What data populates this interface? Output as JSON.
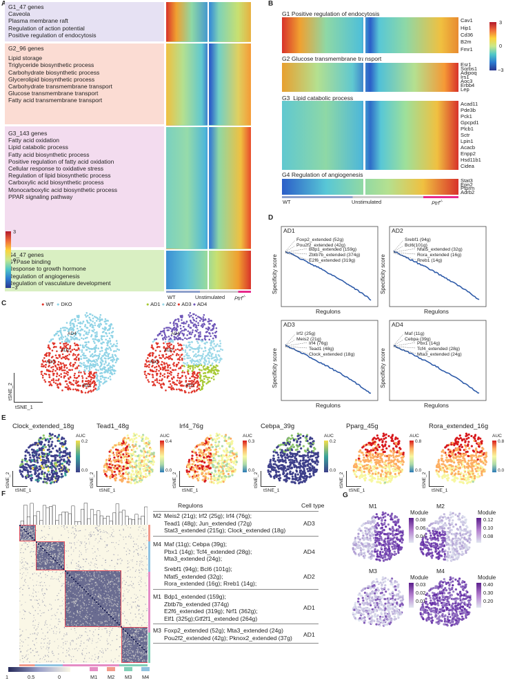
{
  "panels": {
    "a": "A",
    "b": "B",
    "c": "C",
    "d": "D",
    "e": "E",
    "f": "F",
    "g": "G"
  },
  "panelA": {
    "groups": [
      {
        "title": "G1_47 genes",
        "terms": [
          "Caveola",
          "Plasma membrane raft",
          "Regulation of action potential",
          "Positive regulation of endocytosis"
        ],
        "color": "#e6e1f3"
      },
      {
        "title": "G2_96 genes",
        "terms": [
          "Lipid storage",
          "Triglyceride biosynthetic process",
          "Carbohydrate biosynthetic process",
          "Glycerolipid biosynthetic process",
          "Carbohydrate transmembrane transport",
          "Glucose transmembrane transport",
          "Fatty acid transmembrane transport"
        ],
        "color": "#fbdcd3"
      },
      {
        "title": "G3_143 genes",
        "terms": [
          "Fatty acid oxidation",
          "Lipid catabolic process",
          "Fatty acid biosynthetic process",
          "Positive regulation of fatty acid oxidation",
          "Cellular response to oxidative stress",
          "Regulation of lipid biosynthetic process",
          "Carboxylic acid biosynthetic process",
          "Monocarboxylic acid biosynthetic process",
          "PPAR signaling pathway"
        ],
        "color": "#f3dcef"
      },
      {
        "title": "G4_47 genes",
        "terms": [
          "GTPase binding",
          "Response to growth hormone",
          "Regulation of angiogenesis",
          "Regulation of vasculature development"
        ],
        "color": "#d9efc2"
      }
    ],
    "scale": {
      "max": "3",
      "mid": "0",
      "min": "−3"
    },
    "xlabels": {
      "wt": "WT",
      "unstim": "Unstimulated",
      "ptrf": "Ptrf",
      "ptrf_sup": "-/-"
    }
  },
  "panelB": {
    "groups": [
      {
        "title": "G1  Positive regulation of endocytosis",
        "genes": [
          "Cav1",
          "Hip1",
          "Cd36",
          "B2m",
          "Fmr1"
        ]
      },
      {
        "title": "G2  Glucose transmembrane transport",
        "genes": [
          "Esr1",
          "Sorbs1",
          "Adipoq",
          "Irs1",
          "Aoc3",
          "Erbb4",
          "Lep"
        ]
      },
      {
        "title": "G3_Lipid catabolic process",
        "genes": [
          "Acad11",
          "Pde3b",
          "Pck1",
          "Gpcpd1",
          "Plcb1",
          "Sctr",
          "Lpin1",
          "Acacb",
          "Enpp2",
          "Hsd11b1",
          "Cidea"
        ]
      },
      {
        "title": "G4  Regulation of angiogenesis",
        "genes": [
          "Stat3",
          "Epn2",
          "Ptprm",
          "Adrb2"
        ]
      }
    ],
    "scale": {
      "max": "3",
      "mid": "0",
      "min": "−3"
    },
    "xlabels": {
      "wt": "WT",
      "unstim": "Unstimulated",
      "ptrf": "Ptrf",
      "ptrf_sup": "-/-"
    }
  },
  "panelC": {
    "legend1": [
      "WT",
      "DKO"
    ],
    "legend1_colors": [
      "#e0352a",
      "#8fd3e6"
    ],
    "legend2": [
      "AD1",
      "AD2",
      "AD3",
      "AD4"
    ],
    "legend2_colors": [
      "#a7c934",
      "#9bd8e8",
      "#e0352a",
      "#6f57b8"
    ],
    "cluster_labels": [
      "AD4",
      "AD2",
      "AD3",
      "AD1"
    ],
    "xlab": "tSNE_1",
    "ylab": "tSNE_2"
  },
  "panelD": {
    "ylab": "Specificity score",
    "xlab": "Regulons",
    "plots": [
      {
        "title": "AD1",
        "labels": [
          "Foxp2_extended (52g)",
          "Pou2f2_extended (42g)",
          "Bdp1_extended (159g)",
          "Zbtb7b_extended (374g)",
          "E2f6_extended (319g)"
        ]
      },
      {
        "title": "AD2",
        "labels": [
          "Srebf1 (94g)",
          "Bcl6(101g)",
          "Nfat5_extended (32g)",
          "Rora_extended (16g)",
          "Rreb1 (14g)"
        ]
      },
      {
        "title": "AD3",
        "labels": [
          "Irf2 (25g)",
          "Meis2 (21g)",
          "Irf4 (76g)",
          "Tead1 (48g)",
          "Clock_extended (18g)"
        ]
      },
      {
        "title": "AD4",
        "labels": [
          "Maf (11g)",
          "Cebpa (39g)",
          "Pbx1 (14g)",
          "Tcf4_extended (28g)",
          "Mta3_extended (24g)"
        ]
      }
    ]
  },
  "panelE": {
    "xlab": "tSNE_1",
    "ylab": "tSNE_2",
    "auc": "AUC",
    "plots": [
      {
        "title": "Clock_extended_18g",
        "max": "0.2",
        "min": "0.0"
      },
      {
        "title": "Tead1_48g",
        "max": "0.4",
        "min": "0.0"
      },
      {
        "title": "Irf4_76g",
        "max": "0.3",
        "min": "0.0"
      },
      {
        "title": "Cebpa_39g",
        "max": "0.2",
        "min": "0.0"
      },
      {
        "title": "Pparg_45g",
        "max": "0.8",
        "min": "0.0"
      },
      {
        "title": "Rora_extended_16g",
        "max": "0.8",
        "min": "0.0"
      }
    ]
  },
  "panelF": {
    "col_regulons": "Regulons",
    "col_celltype": "Cell type",
    "rows": [
      {
        "module": "M2",
        "text": [
          "Meis2 (21g); Irf2 (25g); Irf4 (76g);",
          "Tead1 (48g); Jun_extended (72g)",
          "Stat3_extended (215g); Clock_extended (18g)"
        ],
        "cell": "AD3"
      },
      {
        "module": "M4",
        "text": [
          "Maf (11g); Cebpa (39g);",
          "Pbx1 (14g); Tcf4_extended (28g);",
          "Mta3_extended (24g);"
        ],
        "cell": "AD4"
      },
      {
        "module": "",
        "text": [
          "Srebf1 (94g); Bcl6 (101g);",
          "Nfat5_extended (32g);",
          "Rora_extended (16g); Rreb1 (14g);"
        ],
        "cell": "AD2"
      },
      {
        "module": "M1",
        "text": [
          "Bdp1_extended (159g);",
          "Zbtb7b_extended (374g)",
          "E2f6_extended (319g); Nrf1 (362g);",
          "Elf1 (325g);Gtf2f1_extended (264g)"
        ],
        "cell": "AD1"
      },
      {
        "module": "M3",
        "text": [
          "Foxp2_extended (52g); Mta3_extended (24g)",
          "Pou2f2_extended (42g); Pknox2_extended (37g)"
        ],
        "cell": "AD1"
      }
    ],
    "scale": [
      "1",
      "0.5",
      "0"
    ],
    "modules": [
      "M1",
      "M2",
      "M3",
      "M4"
    ],
    "module_colors": [
      "#e58cc4",
      "#f29a8a",
      "#7fcfb6",
      "#8fc3e0"
    ]
  },
  "panelG": {
    "legend_title": "Module",
    "plots": [
      {
        "title": "M1",
        "ticks": [
          "0.08",
          "0.06",
          "0.04"
        ]
      },
      {
        "title": "M2",
        "ticks": [
          "0.12",
          "0.10",
          "0.08"
        ]
      },
      {
        "title": "M3",
        "ticks": [
          "0.03",
          "0.02",
          "0.01"
        ]
      },
      {
        "title": "M4",
        "ticks": [
          "0.40",
          "0.30",
          "0.20"
        ]
      }
    ]
  }
}
